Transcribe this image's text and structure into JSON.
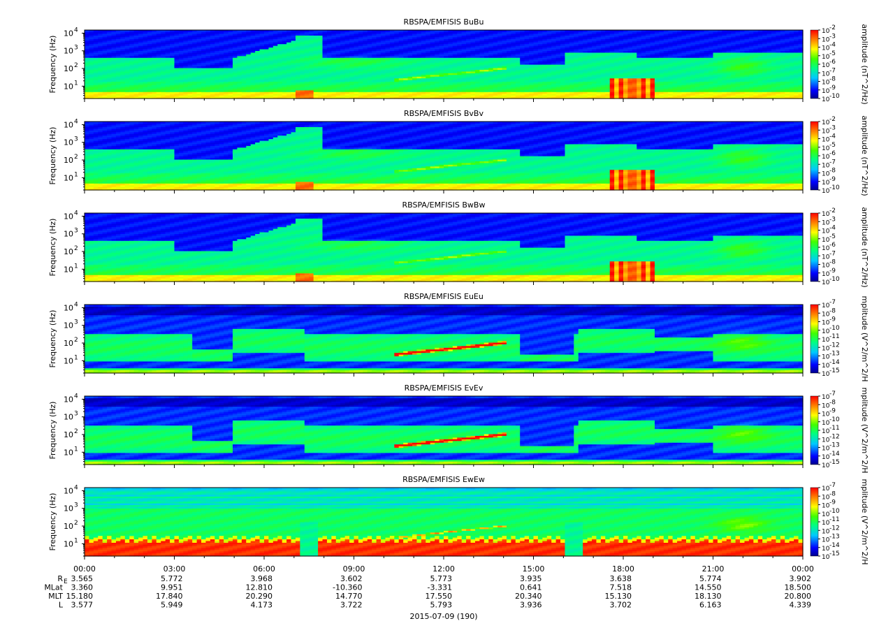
{
  "chart_data": {
    "type": "heatmap",
    "time_axis": {
      "ticks": [
        "00:00",
        "03:00",
        "06:00",
        "09:00",
        "12:00",
        "15:00",
        "18:00",
        "21:00",
        "00:00"
      ],
      "minor_ticks_per_hour": true,
      "date_label": "2015-07-09 (190)",
      "ephemeris": [
        {
          "label": "R",
          "sub": "E",
          "values": [
            "3.565",
            "5.772",
            "3.968",
            "3.602",
            "5.773",
            "3.935",
            "3.638",
            "5.774",
            "3.902"
          ]
        },
        {
          "label": "MLat",
          "sub": "",
          "values": [
            "3.360",
            "9.951",
            "12.810",
            "-10.360",
            "-3.331",
            "0.641",
            "7.518",
            "14.550",
            "18.500"
          ]
        },
        {
          "label": "MLT",
          "sub": "",
          "values": [
            "15.180",
            "17.840",
            "20.290",
            "14.770",
            "17.550",
            "20.340",
            "15.130",
            "18.130",
            "20.800"
          ]
        },
        {
          "label": "L",
          "sub": "",
          "values": [
            "3.577",
            "5.949",
            "4.173",
            "3.722",
            "5.793",
            "3.936",
            "3.702",
            "6.163",
            "4.339"
          ]
        }
      ]
    },
    "panels": [
      {
        "title": "RBSPA/EMFISIS  BuBu",
        "ylabel": "Frequency (Hz)",
        "yscale": "log",
        "ylim": [
          2,
          15000
        ],
        "yticks": [
          "10^1",
          "10^2",
          "10^3",
          "10^4"
        ],
        "colorbar_label": "amplitude (nT^2/Hz)",
        "colorbar_ticks": [
          "-2",
          "-3",
          "-4",
          "-5",
          "-6",
          "-7",
          "-8",
          "-9",
          "-10"
        ],
        "kind": "B"
      },
      {
        "title": "RBSPA/EMFISIS  BvBv",
        "ylabel": "Frequency (Hz)",
        "yscale": "log",
        "ylim": [
          2,
          15000
        ],
        "yticks": [
          "10^1",
          "10^2",
          "10^3",
          "10^4"
        ],
        "colorbar_label": "amplitude (nT^2/Hz)",
        "colorbar_ticks": [
          "-2",
          "-3",
          "-4",
          "-5",
          "-6",
          "-7",
          "-8",
          "-9",
          "-10"
        ],
        "kind": "B"
      },
      {
        "title": "RBSPA/EMFISIS  BwBw",
        "ylabel": "Frequency (Hz)",
        "yscale": "log",
        "ylim": [
          2,
          15000
        ],
        "yticks": [
          "10^1",
          "10^2",
          "10^3",
          "10^4"
        ],
        "colorbar_label": "amplitude (nT^2/Hz)",
        "colorbar_ticks": [
          "-2",
          "-3",
          "-4",
          "-5",
          "-6",
          "-7",
          "-8",
          "-9",
          "-10"
        ],
        "kind": "B"
      },
      {
        "title": "RBSPA/EMFISIS  EuEu",
        "ylabel": "Frequency (Hz)",
        "yscale": "log",
        "ylim": [
          2,
          15000
        ],
        "yticks": [
          "10^1",
          "10^2",
          "10^3",
          "10^4"
        ],
        "colorbar_label": "mplitude (V^2/m^2/H",
        "colorbar_ticks": [
          "-7",
          "-8",
          "-9",
          "-10",
          "-11",
          "-12",
          "-13",
          "-14",
          "-15"
        ],
        "kind": "E"
      },
      {
        "title": "RBSPA/EMFISIS  EvEv",
        "ylabel": "Frequency (Hz)",
        "yscale": "log",
        "ylim": [
          2,
          15000
        ],
        "yticks": [
          "10^1",
          "10^2",
          "10^3",
          "10^4"
        ],
        "colorbar_label": "mplitude (V^2/m^2/H",
        "colorbar_ticks": [
          "-7",
          "-8",
          "-9",
          "-10",
          "-11",
          "-12",
          "-13",
          "-14",
          "-15"
        ],
        "kind": "E"
      },
      {
        "title": "RBSPA/EMFISIS  EwEw",
        "ylabel": "Frequency (Hz)",
        "yscale": "log",
        "ylim": [
          2,
          15000
        ],
        "yticks": [
          "10^1",
          "10^2",
          "10^3",
          "10^4"
        ],
        "colorbar_label": "mplitude (V^2/m^2/H",
        "colorbar_ticks": [
          "-7",
          "-8",
          "-9",
          "-10",
          "-11",
          "-12",
          "-13",
          "-14",
          "-15"
        ],
        "kind": "Ew"
      }
    ]
  }
}
